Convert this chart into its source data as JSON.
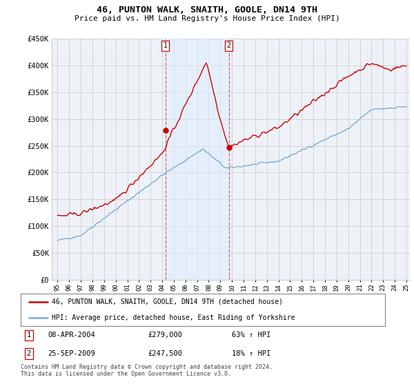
{
  "title": "46, PUNTON WALK, SNAITH, GOOLE, DN14 9TH",
  "subtitle": "Price paid vs. HM Land Registry's House Price Index (HPI)",
  "legend_line1": "46, PUNTON WALK, SNAITH, GOOLE, DN14 9TH (detached house)",
  "legend_line2": "HPI: Average price, detached house, East Riding of Yorkshire",
  "footnote": "Contains HM Land Registry data © Crown copyright and database right 2024.\nThis data is licensed under the Open Government Licence v3.0.",
  "transaction1_label": "1",
  "transaction1_date": "08-APR-2004",
  "transaction1_price": "£279,000",
  "transaction1_hpi": "63% ↑ HPI",
  "transaction2_label": "2",
  "transaction2_date": "25-SEP-2009",
  "transaction2_price": "£247,500",
  "transaction2_hpi": "18% ↑ HPI",
  "hpi_line_color": "#7aaad0",
  "price_line_color": "#cc0000",
  "vline_color": "#cc0000",
  "vline_alpha": 0.6,
  "shade_color": "#ddeeff",
  "shade_alpha": 0.5,
  "background_color": "#ffffff",
  "plot_bg_color": "#eef2f8",
  "grid_color": "#cccccc",
  "ylim": [
    0,
    450000
  ],
  "yticks": [
    0,
    50000,
    100000,
    150000,
    200000,
    250000,
    300000,
    350000,
    400000,
    450000
  ],
  "ytick_labels": [
    "£0",
    "£50K",
    "£100K",
    "£150K",
    "£200K",
    "£250K",
    "£300K",
    "£350K",
    "£400K",
    "£450K"
  ],
  "xmin": 1995,
  "xmax": 2025,
  "transaction1_x": 2004.27,
  "transaction1_y": 279000,
  "transaction2_x": 2009.73,
  "transaction2_y": 247500
}
